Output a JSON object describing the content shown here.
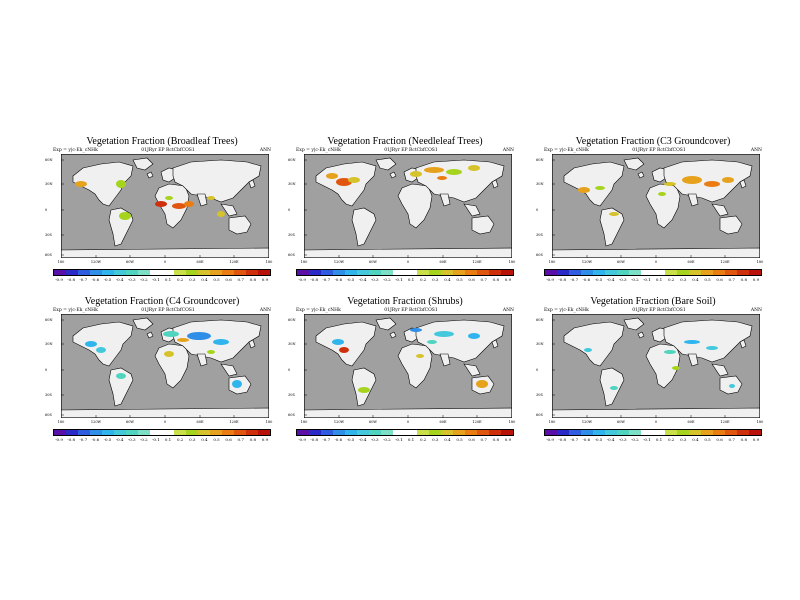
{
  "common": {
    "meta_left": "Exp = y|c-Ek_cNHk",
    "meta_mid": "01JRyr EP   RctCbfCOS1",
    "meta_right": "ANN",
    "lat_labels": [
      "60N",
      "30N",
      "0",
      "30S",
      "60S"
    ],
    "lon_labels": [
      "180",
      "120W",
      "60W",
      "0",
      "60E",
      "120E",
      "180"
    ],
    "colorbar_labels": [
      "-0.9",
      "-0.8",
      "-0.7",
      "-0.6",
      "-0.5",
      "-0.4",
      "-0.3",
      "-0.2",
      "-0.1",
      "0.1",
      "0.2",
      "0.3",
      "0.4",
      "0.5",
      "0.6",
      "0.7",
      "0.8",
      "0.9"
    ],
    "colorbar_colors": [
      "#5a0fa8",
      "#2a2ac8",
      "#2f5ce0",
      "#2f8ee8",
      "#30b4ee",
      "#44c8dc",
      "#4fd4bf",
      "#7ddfc6",
      "#ffffff",
      "#ffffff",
      "#c9e04a",
      "#a6d41e",
      "#d6c22a",
      "#e6a21c",
      "#ea7c12",
      "#e0560e",
      "#cf300c",
      "#b8120a"
    ],
    "colors": {
      "ocean": "#a0a0a0",
      "land": "#f0f0f0",
      "coast": "#000000"
    }
  },
  "panels": [
    {
      "title": "Vegetation Fraction (Broadleaf Trees)"
    },
    {
      "title": "Vegetation Fraction (Needleleaf Trees)"
    },
    {
      "title": "Vegetation Fraction (C3 Groundcover)"
    },
    {
      "title": "Vegetation Fraction (C4 Groundcover)"
    },
    {
      "title": "Vegetation Fraction (Shrubs)"
    },
    {
      "title": "Vegetation Fraction (Bare Soil)"
    }
  ]
}
